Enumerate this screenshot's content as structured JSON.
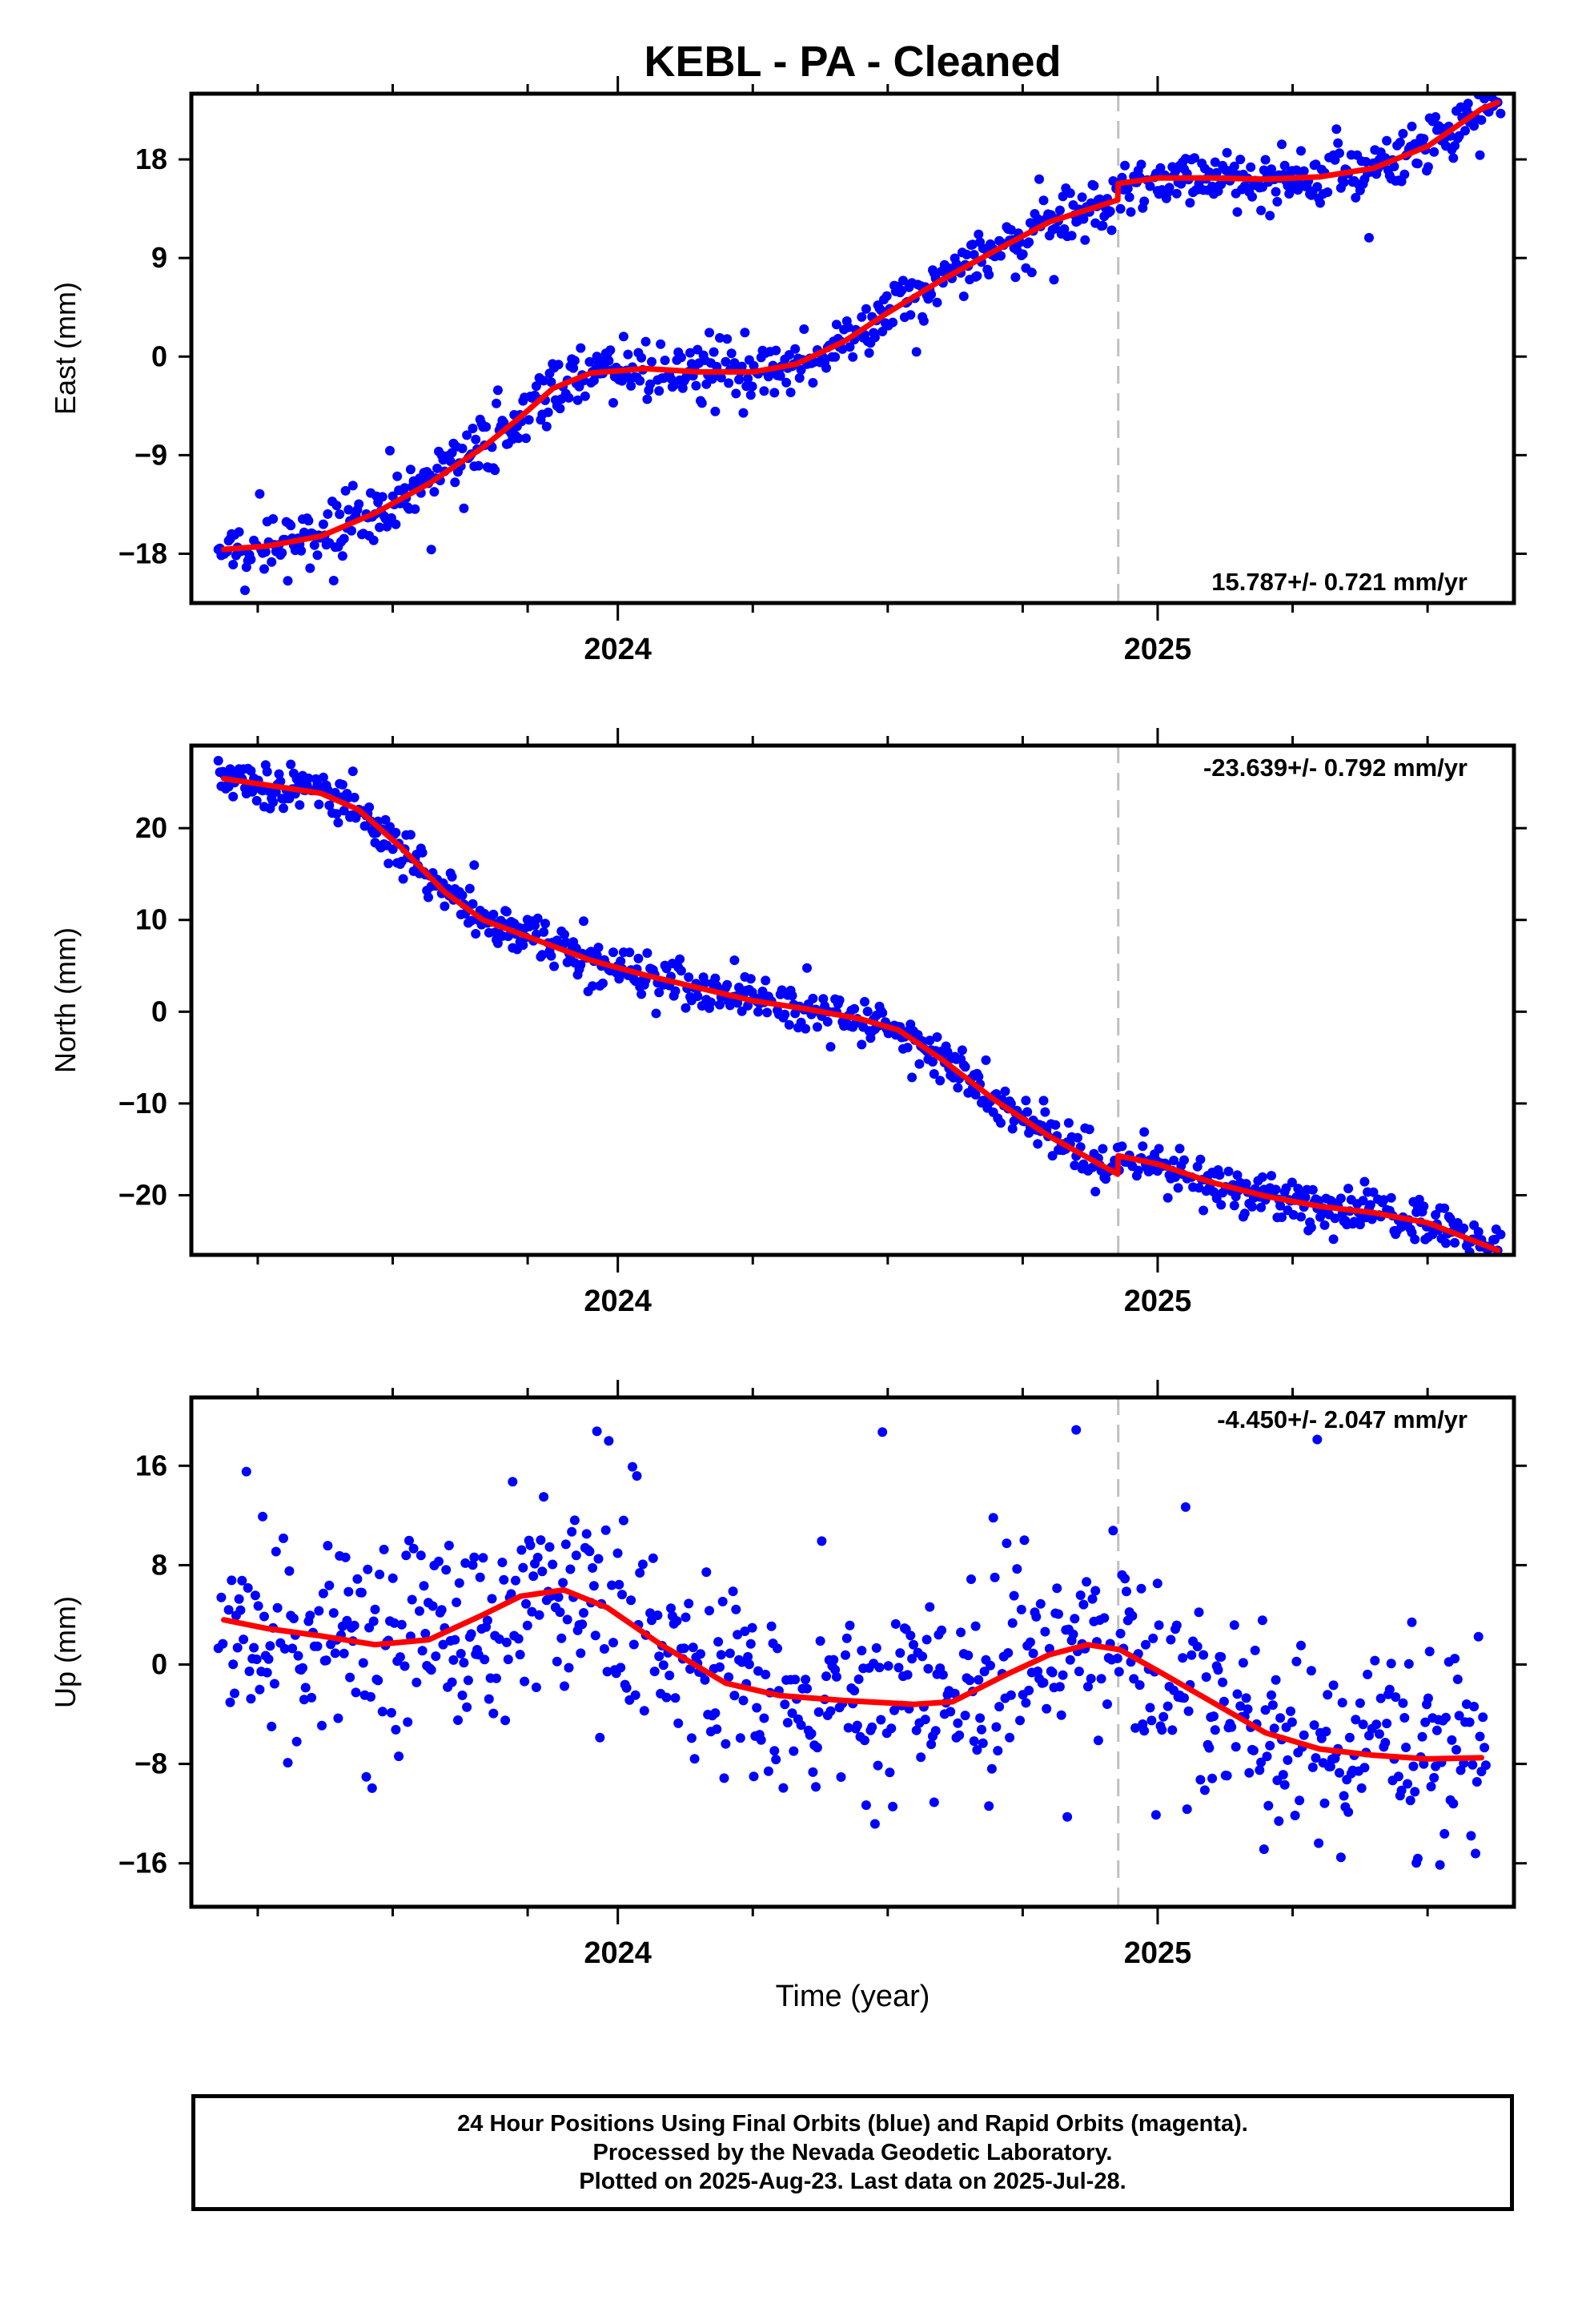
{
  "title": "KEBL  - PA - Cleaned",
  "xlabel": "Time (year)",
  "footer": {
    "line1": "24 Hour Positions Using Final Orbits (blue) and Rapid Orbits (magenta).",
    "line2": "Processed by the Nevada Geodetic Laboratory.",
    "line3": "Plotted on 2025-Aug-23. Last data on 2025-Jul-28."
  },
  "colors": {
    "final_orbits": "#0000ff",
    "model_fit": "#ff0000",
    "equipment_change": "#c0c0c0"
  },
  "chart_data": [
    {
      "type": "scatter",
      "name": "east",
      "ylabel": "East (mm)",
      "xlim": [
        2023.21,
        2025.66
      ],
      "ylim": [
        -22.5,
        24.0
      ],
      "yticks": [
        -18,
        -9,
        0,
        9,
        18
      ],
      "xticks_major": [
        2024,
        2025
      ],
      "xticks_major_labels": [
        "2024",
        "2025"
      ],
      "xticks_minor": [
        2023.333,
        2023.583,
        2023.833,
        2024.25,
        2024.5,
        2024.75,
        2025.25,
        2025.5
      ],
      "equipment_change_x": 2024.927,
      "rate_annotation": "15.787+/- 0.721 mm/yr",
      "rate_position": "bottom-right",
      "series": [
        {
          "name": "",
          "noise": 1.3
        }
      ],
      "model": [
        [
          2023.27,
          -17.6
        ],
        [
          2023.35,
          -17.3
        ],
        [
          2023.45,
          -16.4
        ],
        [
          2023.55,
          -14.3
        ],
        [
          2023.65,
          -11.6
        ],
        [
          2023.75,
          -8.3
        ],
        [
          2023.82,
          -5.5
        ],
        [
          2023.88,
          -2.9
        ],
        [
          2023.95,
          -1.5
        ],
        [
          2024.05,
          -1.1
        ],
        [
          2024.15,
          -1.4
        ],
        [
          2024.25,
          -1.4
        ],
        [
          2024.33,
          -0.7
        ],
        [
          2024.42,
          1.4
        ],
        [
          2024.5,
          4.0
        ],
        [
          2024.6,
          7.0
        ],
        [
          2024.7,
          9.7
        ],
        [
          2024.8,
          12.3
        ],
        [
          2024.926,
          14.3
        ],
        [
          2024.927,
          15.8
        ],
        [
          2025.0,
          16.3
        ],
        [
          2025.1,
          16.3
        ],
        [
          2025.2,
          16.2
        ],
        [
          2025.3,
          16.4
        ],
        [
          2025.4,
          17.2
        ],
        [
          2025.5,
          19.2
        ],
        [
          2025.6,
          22.6
        ],
        [
          2025.63,
          23.2
        ]
      ]
    },
    {
      "type": "scatter",
      "name": "north",
      "ylabel": "North (mm)",
      "xlim": [
        2023.21,
        2025.66
      ],
      "ylim": [
        -26.5,
        29.0
      ],
      "yticks": [
        -20,
        -10,
        0,
        10,
        20
      ],
      "xticks_major": [
        2024,
        2025
      ],
      "xticks_major_labels": [
        "2024",
        "2025"
      ],
      "xticks_minor": [
        2023.333,
        2023.583,
        2023.833,
        2024.25,
        2024.5,
        2024.75,
        2025.25,
        2025.5
      ],
      "equipment_change_x": 2024.927,
      "rate_annotation": "-23.639+/- 0.792 mm/yr",
      "rate_position": "top-right",
      "series": [
        {
          "name": "",
          "noise": 1.2
        }
      ],
      "model": [
        [
          2023.27,
          25.4
        ],
        [
          2023.35,
          24.7
        ],
        [
          2023.45,
          23.8
        ],
        [
          2023.52,
          22.0
        ],
        [
          2023.6,
          17.8
        ],
        [
          2023.68,
          13.0
        ],
        [
          2023.75,
          10.0
        ],
        [
          2023.85,
          7.8
        ],
        [
          2023.95,
          5.6
        ],
        [
          2024.05,
          4.0
        ],
        [
          2024.15,
          2.6
        ],
        [
          2024.25,
          1.2
        ],
        [
          2024.35,
          0.3
        ],
        [
          2024.45,
          -0.8
        ],
        [
          2024.52,
          -2.0
        ],
        [
          2024.6,
          -5.2
        ],
        [
          2024.7,
          -9.7
        ],
        [
          2024.8,
          -13.6
        ],
        [
          2024.926,
          -17.7
        ],
        [
          2024.927,
          -15.7
        ],
        [
          2025.0,
          -16.6
        ],
        [
          2025.1,
          -18.6
        ],
        [
          2025.2,
          -20.1
        ],
        [
          2025.3,
          -21.2
        ],
        [
          2025.4,
          -21.9
        ],
        [
          2025.5,
          -23.0
        ],
        [
          2025.6,
          -25.3
        ],
        [
          2025.63,
          -26.0
        ]
      ]
    },
    {
      "type": "scatter",
      "name": "up",
      "ylabel": "Up (mm)",
      "xlim": [
        2023.21,
        2025.66
      ],
      "ylim": [
        -19.5,
        21.5
      ],
      "yticks": [
        -16,
        -8,
        0,
        8,
        16
      ],
      "xticks_major": [
        2024,
        2025
      ],
      "xticks_major_labels": [
        "2024",
        "2025"
      ],
      "xticks_minor": [
        2023.333,
        2023.583,
        2023.833,
        2024.25,
        2024.5,
        2024.75,
        2025.25,
        2025.5
      ],
      "equipment_change_x": 2024.927,
      "rate_annotation": "-4.450+/- 2.047 mm/yr",
      "rate_position": "top-right",
      "series": [
        {
          "name": "",
          "noise": 4.0
        }
      ],
      "model": [
        [
          2023.27,
          3.6
        ],
        [
          2023.35,
          2.9
        ],
        [
          2023.45,
          2.3
        ],
        [
          2023.55,
          1.6
        ],
        [
          2023.65,
          2.0
        ],
        [
          2023.75,
          4.0
        ],
        [
          2023.82,
          5.5
        ],
        [
          2023.9,
          6.0
        ],
        [
          2023.98,
          4.6
        ],
        [
          2024.08,
          1.6
        ],
        [
          2024.2,
          -1.5
        ],
        [
          2024.3,
          -2.5
        ],
        [
          2024.42,
          -2.9
        ],
        [
          2024.55,
          -3.2
        ],
        [
          2024.62,
          -3.0
        ],
        [
          2024.72,
          -0.8
        ],
        [
          2024.8,
          0.8
        ],
        [
          2024.87,
          1.6
        ],
        [
          2024.93,
          1.2
        ],
        [
          2025.0,
          -0.5
        ],
        [
          2025.1,
          -3.0
        ],
        [
          2025.2,
          -5.5
        ],
        [
          2025.3,
          -6.8
        ],
        [
          2025.4,
          -7.3
        ],
        [
          2025.5,
          -7.6
        ],
        [
          2025.6,
          -7.5
        ]
      ]
    }
  ]
}
